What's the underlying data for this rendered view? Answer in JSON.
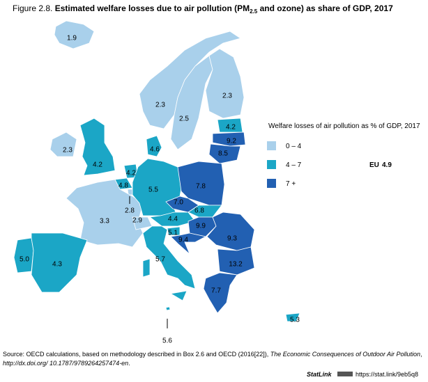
{
  "header": {
    "figure": "Figure 2.8.",
    "title_a": "Estimated welfare losses due to air pollution (PM",
    "title_sub": "2.5",
    "title_b": " and ozone) as share of GDP, 2017"
  },
  "legend": {
    "title": "Welfare losses of air pollution as % of GDP, 2017",
    "items": [
      {
        "label": "0 – 4",
        "color": "#a9d0eb"
      },
      {
        "label": "4 – 7",
        "color": "#1ba6c6"
      },
      {
        "label": "7 +",
        "color": "#2260b2"
      }
    ],
    "eu_label": "EU",
    "eu_value": "4.9"
  },
  "regions": [
    {
      "label": "1.9",
      "color": "#a9d0eb"
    },
    {
      "label": "2.3",
      "color": "#a9d0eb"
    },
    {
      "label": "2.5",
      "color": "#a9d0eb"
    },
    {
      "label": "2.3",
      "color": "#a9d0eb"
    },
    {
      "label": "4.2",
      "color": "#1ba6c6"
    },
    {
      "label": "9.2",
      "color": "#2260b2"
    },
    {
      "label": "8.5",
      "color": "#2260b2"
    },
    {
      "label": "2.3",
      "color": "#a9d0eb"
    },
    {
      "label": "4.2",
      "color": "#1ba6c6"
    },
    {
      "label": "4.6",
      "color": "#1ba6c6"
    },
    {
      "label": "4.2",
      "color": "#1ba6c6"
    },
    {
      "label": "4.8",
      "color": "#1ba6c6"
    },
    {
      "label": "2.8",
      "color": "#a9d0eb"
    },
    {
      "label": "3.3",
      "color": "#a9d0eb"
    },
    {
      "label": "5.5",
      "color": "#1ba6c6"
    },
    {
      "label": "7.8",
      "color": "#2260b2"
    },
    {
      "label": "7.0",
      "color": "#2260b2"
    },
    {
      "label": "6.8",
      "color": "#1ba6c6"
    },
    {
      "label": "4.4",
      "color": "#1ba6c6"
    },
    {
      "label": "2.9",
      "color": "#a9d0eb"
    },
    {
      "label": "5.1",
      "color": "#1ba6c6"
    },
    {
      "label": "9.9",
      "color": "#2260b2"
    },
    {
      "label": "9.4",
      "color": "#2260b2"
    },
    {
      "label": "9.3",
      "color": "#2260b2"
    },
    {
      "label": "13.2",
      "color": "#2260b2"
    },
    {
      "label": "7.7",
      "color": "#2260b2"
    },
    {
      "label": "5.7",
      "color": "#1ba6c6"
    },
    {
      "label": "5.0",
      "color": "#1ba6c6"
    },
    {
      "label": "4.3",
      "color": "#1ba6c6"
    },
    {
      "label": "5.6",
      "color": "#1ba6c6"
    },
    {
      "label": "5.3",
      "color": "#1ba6c6"
    }
  ],
  "source": {
    "a": "Source: OECD calculations, based on methodology described in Box 2.6 and OECD (2016[22]), ",
    "b": "The Economic Consequences of Outdoor Air Pollution",
    "c": ",",
    "d": "http://dx.doi.org/ 10.1787/9789264257474-en",
    "e": "."
  },
  "statlink": {
    "label": "StatLink",
    "url": "https://stat.link/9eb5q8"
  }
}
